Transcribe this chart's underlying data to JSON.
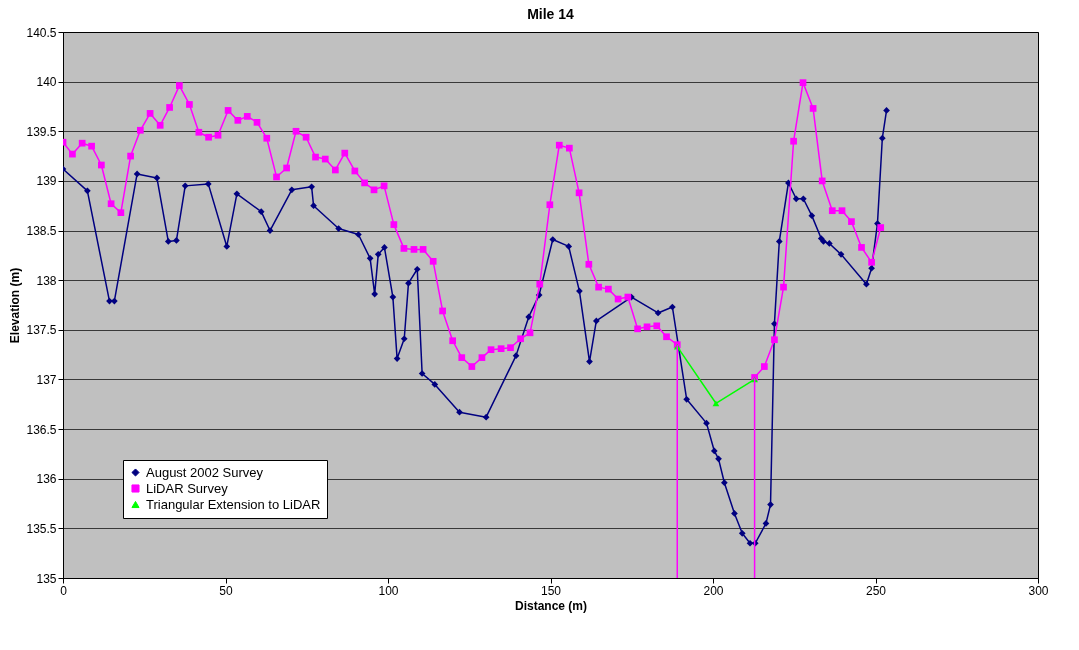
{
  "chart_data": {
    "type": "line",
    "title": "Mile 14",
    "xlabel": "Distance (m)",
    "ylabel": "Elevation (m)",
    "xlim": [
      0,
      300
    ],
    "xticks": [
      0,
      50,
      100,
      150,
      200,
      250,
      300
    ],
    "ylim": [
      135,
      140.5
    ],
    "yticks": [
      135,
      135.5,
      136,
      136.5,
      137,
      137.5,
      138,
      138.5,
      139,
      139.5,
      140,
      140.5
    ],
    "grid": "y",
    "legend": "bottom left",
    "line_style": "solid",
    "series": [
      {
        "name": "August 2002 Survey",
        "color": "#000080",
        "marker": "diamond",
        "x": [
          0,
          7.5,
          14.3,
          15.8,
          22.8,
          28.9,
          32.4,
          34.9,
          37.6,
          44.7,
          50.4,
          53.5,
          61.0,
          63.7,
          70.4,
          76.5,
          77.1,
          84.8,
          90.9,
          94.5,
          95.9,
          97.0,
          98.9,
          101.5,
          102.8,
          105.0,
          106.3,
          109.0,
          110.5,
          114.4,
          122.0,
          130.2,
          139.4,
          143.3,
          146.5,
          150.7,
          155.6,
          158.9,
          162.0,
          164.1,
          174.9,
          183.1,
          187.5,
          191.9,
          198.0,
          200.4,
          201.7,
          203.5,
          206.6,
          209.0,
          211.4,
          213.0,
          216.3,
          217.7,
          218.9,
          220.4,
          223.2,
          225.6,
          227.8,
          230.4,
          233.3,
          234.0,
          235.8,
          239.4,
          247.2,
          248.8,
          250.6,
          252.1,
          253.4
        ],
        "values": [
          139.12,
          138.9,
          137.79,
          137.79,
          139.07,
          139.03,
          138.39,
          138.4,
          138.95,
          138.97,
          138.34,
          138.87,
          138.69,
          138.5,
          138.91,
          138.94,
          138.75,
          138.52,
          138.46,
          138.22,
          137.86,
          138.26,
          138.33,
          137.83,
          137.21,
          137.41,
          137.97,
          138.11,
          137.06,
          136.95,
          136.67,
          136.62,
          137.24,
          137.63,
          137.85,
          138.41,
          138.34,
          137.89,
          137.18,
          137.59,
          137.83,
          137.67,
          137.73,
          136.8,
          136.56,
          136.28,
          136.2,
          135.96,
          135.65,
          135.45,
          135.35,
          135.35,
          135.55,
          135.74,
          137.56,
          138.39,
          138.98,
          138.82,
          138.82,
          138.65,
          138.42,
          138.39,
          138.37,
          138.26,
          137.96,
          138.12,
          138.57,
          139.43,
          139.71
        ]
      },
      {
        "name": "LiDAR Survey",
        "color": "#ff00ff",
        "marker": "square",
        "x": [
          0,
          2.9,
          5.9,
          8.8,
          11.8,
          14.8,
          17.8,
          20.8,
          23.8,
          26.8,
          29.9,
          32.8,
          35.8,
          38.9,
          41.8,
          44.8,
          47.7,
          50.8,
          53.8,
          56.7,
          59.7,
          62.7,
          65.7,
          68.8,
          71.7,
          74.8,
          77.7,
          80.7,
          83.8,
          86.7,
          89.8,
          92.8,
          95.7,
          98.8,
          101.8,
          104.9,
          108.0,
          110.8,
          113.9,
          116.8,
          119.9,
          122.7,
          125.8,
          128.9,
          131.7,
          134.8,
          137.7,
          140.8,
          143.7,
          146.7,
          149.8,
          152.7,
          155.8,
          158.8,
          161.8,
          164.8,
          167.8,
          170.8,
          173.8,
          176.8,
          179.7,
          182.7,
          185.7,
          189.0,
          null,
          212.8,
          215.8,
          218.9,
          221.7,
          224.8,
          227.7,
          230.8,
          233.6,
          236.7,
          239.7,
          242.6,
          245.7,
          248.8,
          251.6
        ],
        "values": [
          139.39,
          139.27,
          139.38,
          139.35,
          139.16,
          138.77,
          138.68,
          139.25,
          139.51,
          139.68,
          139.56,
          139.74,
          139.96,
          139.77,
          139.49,
          139.44,
          139.46,
          139.71,
          139.61,
          139.65,
          139.59,
          139.43,
          139.04,
          139.13,
          139.5,
          139.44,
          139.24,
          139.22,
          139.11,
          139.28,
          139.1,
          138.98,
          138.91,
          138.95,
          138.56,
          138.32,
          138.31,
          138.31,
          138.19,
          137.69,
          137.39,
          137.22,
          137.13,
          137.22,
          137.3,
          137.31,
          137.32,
          137.41,
          137.47,
          137.96,
          138.76,
          139.36,
          139.33,
          138.88,
          138.16,
          137.93,
          137.91,
          137.81,
          137.83,
          137.51,
          137.53,
          137.54,
          137.43,
          137.35,
          null,
          137.02,
          137.13,
          137.4,
          137.93,
          139.4,
          139.99,
          139.73,
          139.0,
          138.7,
          138.7,
          138.59,
          138.33,
          138.18,
          138.53
        ]
      },
      {
        "name": "Triangular Extension to LiDAR",
        "color": "#00ff00",
        "marker": "triangle",
        "x": [
          189.0,
          200.9,
          212.8
        ],
        "values": [
          137.33,
          136.76,
          137.0
        ]
      },
      {
        "type": "line",
        "color": "#ff00ff",
        "marker": "none",
        "x": [
          189.0,
          189.0
        ],
        "values": [
          137.35,
          135
        ]
      },
      {
        "type": "line",
        "color": "#ff00ff",
        "marker": "none",
        "x": [
          212.8,
          212.8
        ],
        "values": [
          137.02,
          135
        ]
      }
    ]
  }
}
